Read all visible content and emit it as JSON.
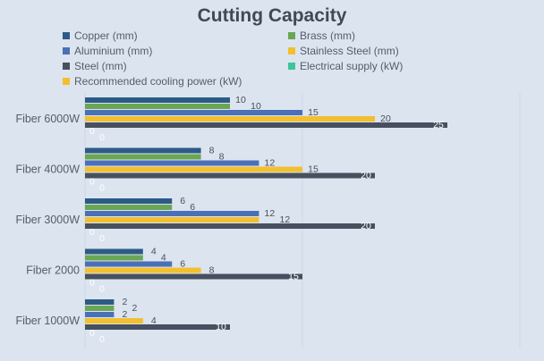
{
  "chart_data": {
    "type": "bar",
    "orientation": "horizontal",
    "title": "Cutting Capacity",
    "categories": [
      "Fiber 6000W",
      "Fiber 4000W",
      "Fiber 3000W",
      "Fiber 2000",
      "Fiber 1000W"
    ],
    "series": [
      {
        "name": "Copper (mm)",
        "color": "#2c5b86",
        "values": [
          10,
          8,
          6,
          4,
          2
        ]
      },
      {
        "name": "Brass (mm)",
        "color": "#6aa653",
        "values": [
          10,
          8,
          6,
          4,
          2
        ]
      },
      {
        "name": "Aluminium (mm)",
        "color": "#4a70b8",
        "values": [
          15,
          12,
          12,
          6,
          2
        ]
      },
      {
        "name": "Stainless Steel (mm)",
        "color": "#f2bf2e",
        "values": [
          20,
          15,
          12,
          8,
          4
        ]
      },
      {
        "name": "Steel (mm)",
        "color": "#46505f",
        "values": [
          25,
          20,
          20,
          15,
          10
        ]
      },
      {
        "name": "Electrical supply (kW)",
        "color": "#3fc49a",
        "values": [
          0,
          0,
          0,
          0,
          0
        ]
      },
      {
        "name": "Recommended cooling power (kW)",
        "color": "#f2bf2e",
        "values": [
          0,
          0,
          0,
          0,
          0
        ]
      }
    ],
    "xlim": [
      0,
      30
    ],
    "grid": true,
    "legend": "top",
    "data_labels": true
  }
}
